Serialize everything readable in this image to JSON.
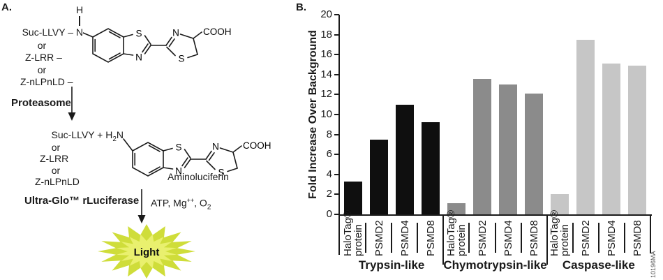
{
  "panel_a": {
    "label": "A.",
    "nh_hydrogen": "H",
    "top_substrates": [
      "Suc-LLVY – N",
      "or",
      "Z-LRR –",
      "or",
      "Z-nLPnLD –"
    ],
    "enzyme_step1": "Proteasome",
    "bottom_substrate_first": {
      "pre": "Suc-LLVY + H",
      "sub": "2",
      "post": "N"
    },
    "bottom_substrates_rest": [
      "or",
      "Z-LRR",
      "or",
      "Z-nLPnLD"
    ],
    "product_label": "Aminoluciferin",
    "enzyme_step2": "Ultra-Glo™ rLuciferase",
    "cofactors": {
      "pre": "ATP, Mg",
      "sup": "++",
      "mid": ", O",
      "sub": "2"
    },
    "light_label": "Light",
    "atom_labels": {
      "s": "S",
      "n": "N",
      "cooh": "COOH"
    },
    "star_colors": {
      "outer": "#cfdd3a",
      "inner": "#e9f06e"
    }
  },
  "panel_b": {
    "label": "B.",
    "figure_number": "10196MA"
  },
  "chart_data": {
    "type": "bar",
    "title": "",
    "xlabel": "",
    "ylabel": "Fold Increase Over Background",
    "ylim": [
      0,
      20
    ],
    "yticks": [
      0,
      2,
      4,
      6,
      8,
      10,
      12,
      14,
      16,
      18,
      20
    ],
    "grid": false,
    "legend": "none",
    "groups": [
      {
        "label": "Trypsin-like",
        "color": "#0f0f0f",
        "bars": [
          {
            "category": "HaloTag®\nprotein",
            "value": 3.3
          },
          {
            "category": "PSMD2",
            "value": 7.5
          },
          {
            "category": "PSMD4",
            "value": 11.0
          },
          {
            "category": "PSMD8",
            "value": 9.2
          }
        ]
      },
      {
        "label": "Chymotrypsin-like",
        "color": "#8b8b8b",
        "bars": [
          {
            "category": "HaloTag®\nprotein",
            "value": 1.1
          },
          {
            "category": "PSMD2",
            "value": 13.6
          },
          {
            "category": "PSMD4",
            "value": 13.0
          },
          {
            "category": "PSMD8",
            "value": 12.1
          }
        ]
      },
      {
        "label": "Caspase-like",
        "color": "#c6c6c6",
        "bars": [
          {
            "category": "HaloTag®\nprotein",
            "value": 2.0
          },
          {
            "category": "PSMD2",
            "value": 17.5
          },
          {
            "category": "PSMD4",
            "value": 15.1
          },
          {
            "category": "PSMD8",
            "value": 14.9
          }
        ]
      }
    ]
  }
}
